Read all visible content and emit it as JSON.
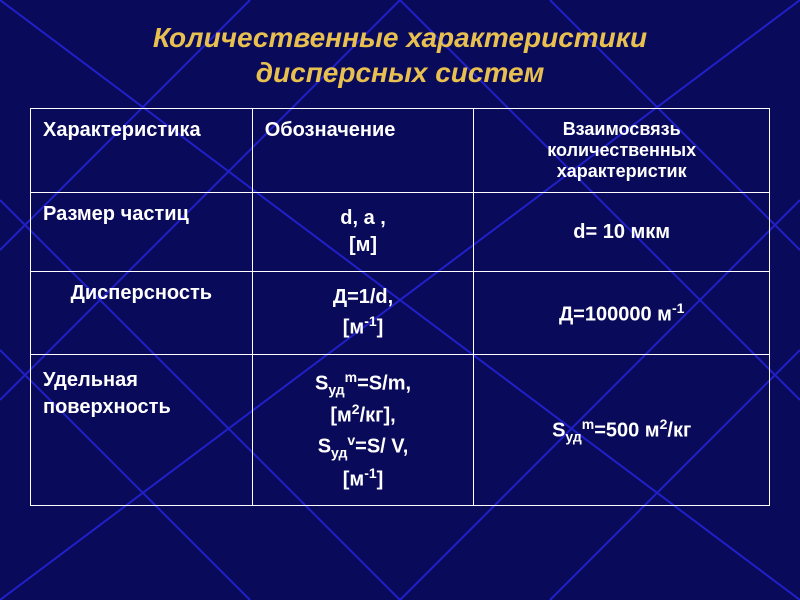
{
  "title_line1": "Количественные характеристики",
  "title_line2": "дисперсных систем",
  "title_color": "#e8c050",
  "title_fontsize": 28,
  "table": {
    "header_fontsize": 20,
    "body_fontsize": 20,
    "columns": [
      {
        "label": "Характеристика",
        "width": "30%",
        "align": "left"
      },
      {
        "label": "Обозначение",
        "width": "30%",
        "align": "left"
      },
      {
        "label_line1": "Взаимосвязь",
        "label_line2": "количественных",
        "label_line3": "характеристик",
        "width": "40%",
        "align": "center",
        "fontsize": 18
      }
    ],
    "rows": [
      {
        "c1": "Размер частиц",
        "c2_line1": "d, a ,",
        "c2_line2": "[м]",
        "c3": "d= 10 мкм"
      },
      {
        "c1": "Дисперсность",
        "c2_line1": "Д=1/d,",
        "c2_line2_pre": "[м",
        "c2_line2_sup": "-1",
        "c2_line2_post": "]",
        "c3_pre": "Д=100000 м",
        "c3_sup": "-1"
      },
      {
        "c1_line1": "Удельная",
        "c1_line2": "поверхность",
        "l1_a": "S",
        "l1_sub": "уд",
        "l1_sup": "m",
        "l1_b": "=S/m,",
        "l2_a": "[м",
        "l2_sup": "2",
        "l2_b": "/кг],",
        "l3_a": "S",
        "l3_sub": "уд",
        "l3_sup": "v",
        "l3_b": "=S/ V,",
        "l4_a": "[м",
        "l4_sup": "-1",
        "l4_b": "]",
        "c3_a": "S",
        "c3_sub": "уд",
        "c3_sup1": "m",
        "c3_b": "=500 м",
        "c3_sup2": "2",
        "c3_c": "/кг"
      }
    ]
  },
  "bg": {
    "color": "#0a0a5a",
    "line_color": "#2020c8",
    "line_width": 2
  }
}
